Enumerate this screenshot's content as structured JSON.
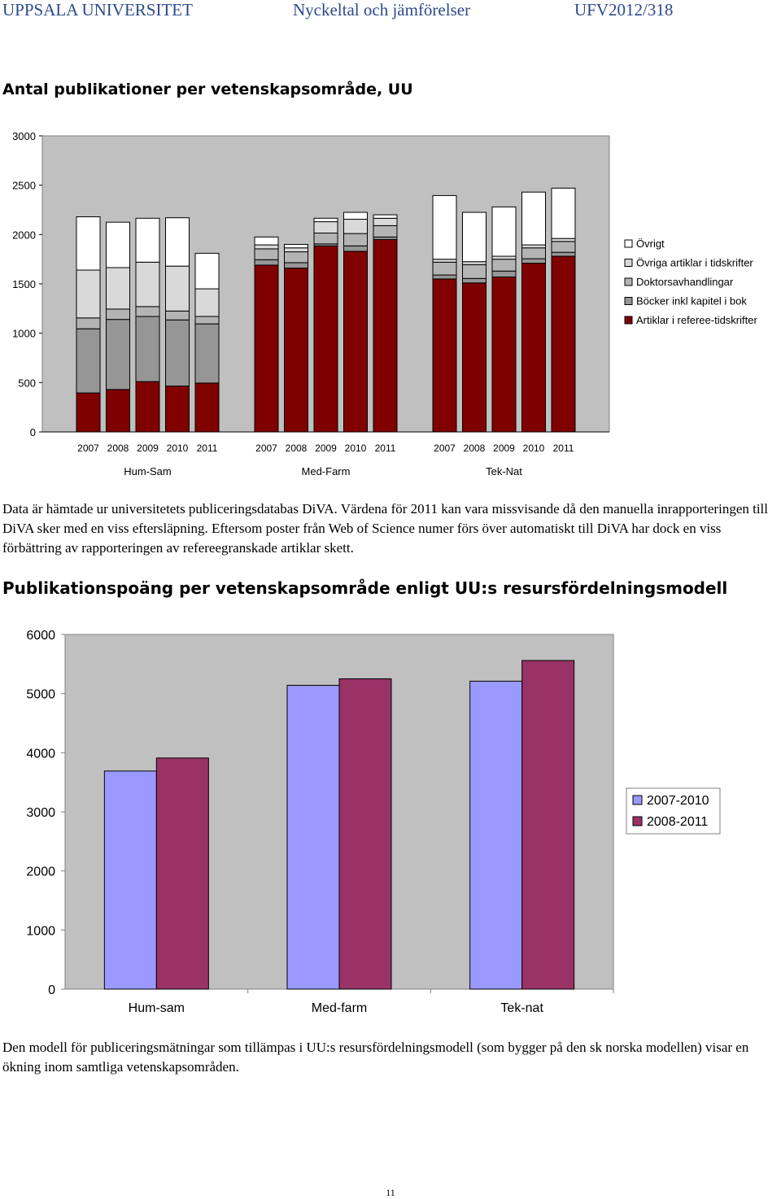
{
  "header": {
    "left": "UPPSALA UNIVERSITET",
    "center": "Nyckeltal och jämförelser",
    "right": "UFV2012/318"
  },
  "section1": {
    "heading": "Antal publikationer per vetenskapsområde, UU",
    "paragraph": "Data är hämtade ur universitetets publiceringsdatabas DiVA. Värdena för 2011 kan vara missvisande då den manuella inrapporteringen till DiVA sker med en viss eftersläpning. Eftersom poster från Web of Science numer förs över automatiskt till DiVA har dock en viss förbättring av rapporteringen av refereegranskade artiklar skett."
  },
  "section2": {
    "heading": "Publikationspoäng per vetenskapsområde enligt UU:s resursfördelningsmodell",
    "paragraph": "Den modell för publiceringsmätningar som tillämpas i UU:s resursfördelningsmodell (som bygger på den sk norska modellen) visar en ökning inom samtliga vetenskapsområden."
  },
  "page_number": "11",
  "chart_data": [
    {
      "type": "bar",
      "stacked": true,
      "title": "",
      "ylim": [
        0,
        3000
      ],
      "yticks": [
        "0",
        "500",
        "1000",
        "1500",
        "2000",
        "2500",
        "3000"
      ],
      "groups": [
        "Hum-Sam",
        "Med-Farm",
        "Tek-Nat"
      ],
      "years": [
        "2007",
        "2008",
        "2009",
        "2010",
        "2011"
      ],
      "legend_position": "right",
      "series": [
        {
          "name": "Artiklar i referee-tidskrifter",
          "color": "#800000",
          "values": [
            [
              395,
              430,
              510,
              465,
              495
            ],
            [
              1690,
              1660,
              1885,
              1830,
              1950
            ],
            [
              1550,
              1510,
              1570,
              1710,
              1780
            ]
          ]
        },
        {
          "name": "Böcker inkl kapitel i bok",
          "color": "#969696",
          "values": [
            [
              650,
              710,
              660,
              670,
              600
            ],
            [
              55,
              55,
              20,
              55,
              25
            ],
            [
              40,
              45,
              60,
              45,
              40
            ]
          ]
        },
        {
          "name": "Doktorsavhandlingar",
          "color": "#b4b4b4",
          "values": [
            [
              110,
              105,
              100,
              90,
              75
            ],
            [
              110,
              110,
              110,
              125,
              115
            ],
            [
              130,
              140,
              120,
              110,
              110
            ]
          ]
        },
        {
          "name": "Övriga artiklar i tidskrifter",
          "color": "#d9d9d9",
          "values": [
            [
              485,
              420,
              450,
              455,
              280
            ],
            [
              40,
              40,
              115,
              145,
              75
            ],
            [
              30,
              30,
              30,
              30,
              30
            ]
          ]
        },
        {
          "name": "Övrigt",
          "color": "#ffffff",
          "values": [
            [
              540,
              460,
              445,
              490,
              360
            ],
            [
              80,
              35,
              35,
              70,
              35
            ],
            [
              645,
              500,
              500,
              535,
              510
            ]
          ]
        }
      ]
    },
    {
      "type": "bar",
      "title": "",
      "ylim": [
        0,
        6000
      ],
      "yticks": [
        "0",
        "1000",
        "2000",
        "3000",
        "4000",
        "5000",
        "6000"
      ],
      "categories": [
        "Hum-sam",
        "Med-farm",
        "Tek-nat"
      ],
      "legend_position": "right",
      "series": [
        {
          "name": "2007-2010",
          "color": "#9999ff",
          "values": [
            3690,
            5140,
            5210
          ]
        },
        {
          "name": "2008-2011",
          "color": "#993366",
          "values": [
            3910,
            5250,
            5560
          ]
        }
      ]
    }
  ]
}
